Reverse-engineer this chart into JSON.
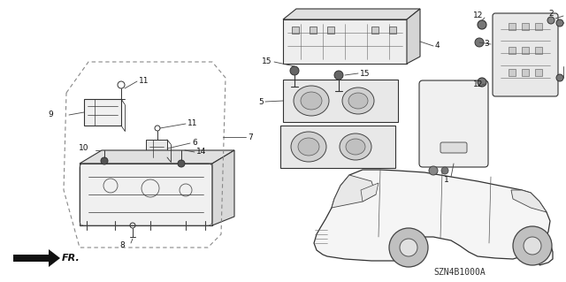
{
  "bg_color": "#ffffff",
  "fig_width": 6.4,
  "fig_height": 3.19,
  "dpi": 100,
  "diagram_code": "SZN4B1000A",
  "fr_label": "FR."
}
